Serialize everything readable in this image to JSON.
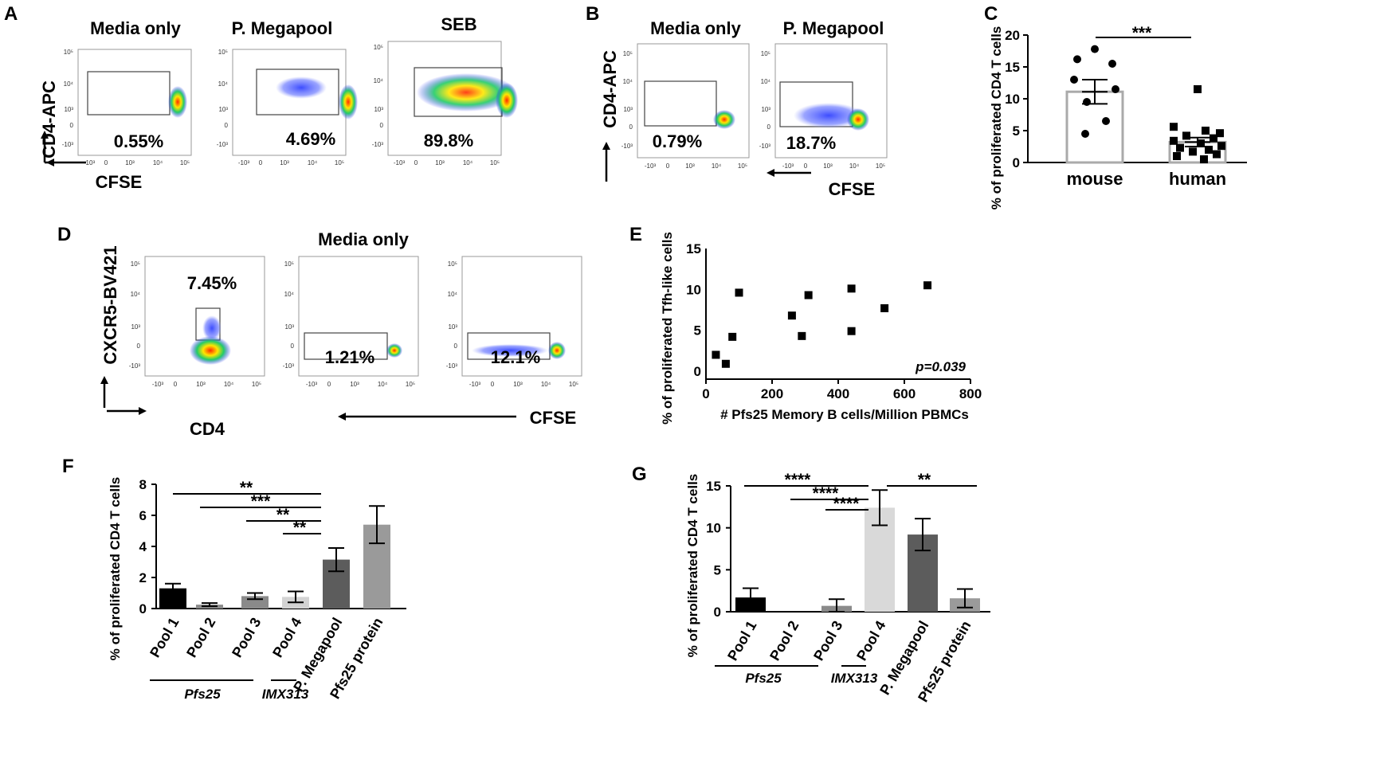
{
  "panels": [
    {
      "label": "A",
      "titles": [
        "Media only",
        "P. Megapool",
        "SEB"
      ],
      "percentages": [
        "0.55%",
        "4.69%",
        "89.8%"
      ],
      "y_axis": "CD4-APC",
      "x_axis": "CFSE"
    },
    {
      "label": "B",
      "titles": [
        "Media only",
        "P. Megapool"
      ],
      "percentages": [
        "0.79%",
        "18.7%"
      ],
      "y_axis": "CD4-APC",
      "x_axis": "CFSE"
    },
    {
      "label": "D",
      "title": "Media only",
      "percentages": [
        "7.45%",
        "1.21%",
        "12.1%"
      ],
      "y_axis": "CXCR5-BV421",
      "x_axis_1": "CD4",
      "x_axis_2": "CFSE"
    }
  ],
  "flow_ticks": {
    "y": [
      "10⁵",
      "10⁴",
      "10³",
      "0",
      "-10³"
    ],
    "x": [
      "-10³",
      "0",
      "10³",
      "10⁴",
      "10⁵"
    ]
  },
  "chart_data": [
    {
      "panel": "C",
      "type": "scatter",
      "title": "",
      "ylabel": "% of proliferated CD4 T cells",
      "xlabel": "",
      "ylim": [
        0,
        20
      ],
      "yticks": [
        "0",
        "5",
        "10",
        "15",
        "20"
      ],
      "categories": [
        "mouse",
        "human"
      ],
      "series": [
        {
          "name": "mouse",
          "mean": 11.1,
          "sem": 1.9,
          "values": [
            17.8,
            16.2,
            15.5,
            13.0,
            11.5,
            9.5,
            6.5,
            4.5
          ]
        },
        {
          "name": "human",
          "mean": 3.2,
          "sem": 0.7,
          "values": [
            11.5,
            5.6,
            5.0,
            4.6,
            4.2,
            3.8,
            3.4,
            3.0,
            2.6,
            2.3,
            2.0,
            1.7,
            1.3,
            1.0,
            0.5
          ]
        }
      ],
      "significance": [
        {
          "label": "***",
          "from": "mouse",
          "to": "human"
        }
      ]
    },
    {
      "panel": "E",
      "type": "scatter",
      "title": "",
      "xlabel": "# Pfs25 Memory B cells/Million PBMCs",
      "ylabel": "% of proliferated  Tfh-like cells",
      "xlim": [
        0,
        800
      ],
      "ylim": [
        0,
        15
      ],
      "xticks": [
        "0",
        "200",
        "400",
        "600",
        "800"
      ],
      "yticks": [
        "0",
        "5",
        "10",
        "15"
      ],
      "x": [
        30,
        60,
        80,
        100,
        260,
        290,
        310,
        440,
        440,
        540,
        670
      ],
      "y": [
        2.0,
        0.9,
        4.2,
        9.6,
        6.8,
        4.3,
        9.3,
        10.1,
        4.9,
        7.7,
        10.5
      ],
      "annotation": "p=0.039"
    },
    {
      "panel": "F",
      "type": "bar",
      "title": "",
      "ylabel": "% of proliferated CD4 T cells",
      "ylim": [
        0,
        8
      ],
      "yticks": [
        "0",
        "2",
        "4",
        "6",
        "8"
      ],
      "categories": [
        "Pool 1",
        "Pool 2",
        "Pool 3",
        "Pool 4",
        "P. Megapool",
        "Pfs25 protein"
      ],
      "values": [
        1.3,
        0.25,
        0.8,
        0.75,
        3.15,
        5.4
      ],
      "errors": [
        0.3,
        0.1,
        0.2,
        0.35,
        0.75,
        1.2
      ],
      "colors": [
        "#000000",
        "#8c8c8c",
        "#8a8a8a",
        "#d3d3d3",
        "#5c5c5c",
        "#9a9a9a"
      ],
      "groups": [
        {
          "label": "Pfs25",
          "from": "Pool 1",
          "to": "Pool 3"
        },
        {
          "label": "IMX313",
          "from": "Pool 4",
          "to": "Pool 4"
        }
      ],
      "significance": [
        {
          "label": "**",
          "from": "Pool 1",
          "to": "P. Megapool"
        },
        {
          "label": "***",
          "from": "Pool 2",
          "to": "P. Megapool"
        },
        {
          "label": "**",
          "from": "Pool 3",
          "to": "P. Megapool"
        },
        {
          "label": "**",
          "from": "Pool 4",
          "to": "P. Megapool"
        }
      ]
    },
    {
      "panel": "G",
      "type": "bar",
      "title": "",
      "ylabel": "% of proliferated CD4 T cells",
      "ylim": [
        0,
        15
      ],
      "yticks": [
        "0",
        "5",
        "10",
        "15"
      ],
      "categories": [
        "Pool 1",
        "Pool 2",
        "Pool 3",
        "Pool 4",
        "P. Megapool",
        "Pfs25 protein"
      ],
      "values": [
        1.7,
        0.0,
        0.7,
        12.4,
        9.2,
        1.6
      ],
      "errors": [
        1.1,
        0.0,
        0.8,
        2.1,
        1.9,
        1.1
      ],
      "colors": [
        "#000000",
        "#8c8c8c",
        "#8a8a8a",
        "#d9d9d9",
        "#5c5c5c",
        "#9a9a9a"
      ],
      "groups": [
        {
          "label": "Pfs25",
          "from": "Pool 1",
          "to": "Pool 3"
        },
        {
          "label": "IMX313",
          "from": "Pool 4",
          "to": "Pool 4"
        }
      ],
      "significance": [
        {
          "label": "****",
          "from": "Pool 1",
          "to": "Pool 4"
        },
        {
          "label": "****",
          "from": "Pool 2",
          "to": "Pool 4"
        },
        {
          "label": "****",
          "from": "Pool 3",
          "to": "Pool 4"
        },
        {
          "label": "**",
          "from": "Pool 4",
          "to": "Pfs25 protein"
        }
      ]
    }
  ]
}
